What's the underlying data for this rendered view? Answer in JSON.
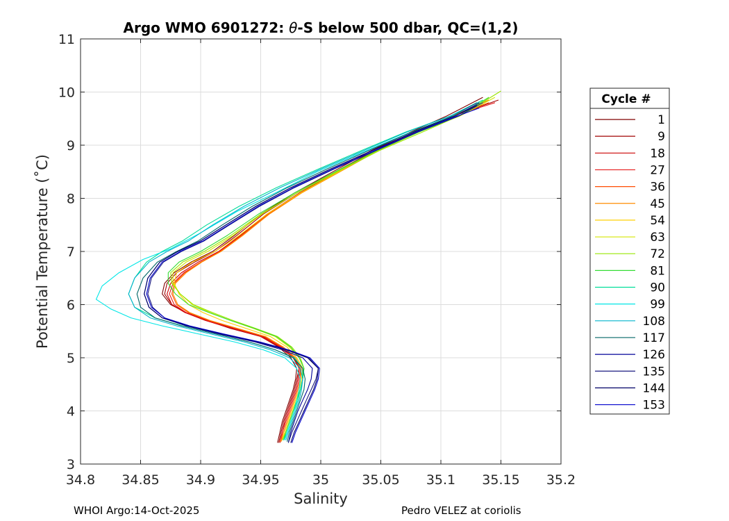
{
  "chart_data": {
    "type": "line",
    "title_prefix": "Argo WMO 6901272: ",
    "title_theta": "θ",
    "title_suffix": "-S below 500 dbar,  QC=(1,2)",
    "xlabel": "Salinity",
    "ylabel": "Potential Temperature (˚C)",
    "xlim": [
      34.8,
      35.2
    ],
    "ylim": [
      3,
      11
    ],
    "xticks": [
      34.8,
      34.85,
      34.9,
      34.95,
      35,
      35.05,
      35.1,
      35.15,
      35.2
    ],
    "xtick_labels": [
      "34.8",
      "34.85",
      "34.9",
      "34.95",
      "35",
      "35.05",
      "35.1",
      "35.15",
      "35.2"
    ],
    "yticks": [
      3,
      4,
      5,
      6,
      7,
      8,
      9,
      10,
      11
    ],
    "ytick_labels": [
      "3",
      "4",
      "5",
      "6",
      "7",
      "8",
      "9",
      "10",
      "11"
    ],
    "grid": true,
    "legend_title": "Cycle #",
    "legend_position": "outside-right",
    "series": [
      {
        "name": "1",
        "color": "#800000",
        "S": [
          34.964,
          34.966,
          34.968,
          34.971,
          34.974,
          34.977,
          34.979,
          34.98,
          34.975,
          34.965,
          34.95,
          34.925,
          34.905,
          34.888,
          34.875,
          34.868,
          34.87,
          34.878,
          34.892,
          34.91,
          34.928,
          34.95,
          34.978,
          35.01,
          35.042,
          35.075,
          35.105,
          35.135
        ],
        "T": [
          3.4,
          3.6,
          3.8,
          4.0,
          4.2,
          4.4,
          4.6,
          4.8,
          5.0,
          5.2,
          5.4,
          5.55,
          5.7,
          5.85,
          6.0,
          6.2,
          6.4,
          6.6,
          6.8,
          7.0,
          7.3,
          7.7,
          8.1,
          8.5,
          8.9,
          9.25,
          9.55,
          9.9
        ]
      },
      {
        "name": "9",
        "color": "#a00000",
        "S": [
          34.965,
          34.967,
          34.969,
          34.972,
          34.975,
          34.978,
          34.98,
          34.982,
          34.978,
          34.968,
          34.952,
          34.928,
          34.906,
          34.888,
          34.876,
          34.87,
          34.872,
          34.88,
          34.895,
          34.912,
          34.93,
          34.952,
          34.98,
          35.012,
          35.045,
          35.078,
          35.11,
          35.148
        ],
        "T": [
          3.4,
          3.6,
          3.8,
          4.0,
          4.2,
          4.4,
          4.6,
          4.8,
          5.0,
          5.2,
          5.4,
          5.55,
          5.7,
          5.85,
          6.0,
          6.2,
          6.4,
          6.6,
          6.8,
          7.0,
          7.3,
          7.7,
          8.1,
          8.5,
          8.9,
          9.25,
          9.55,
          9.85
        ]
      },
      {
        "name": "18",
        "color": "#cc0000",
        "S": [
          34.966,
          34.968,
          34.97,
          34.973,
          34.976,
          34.979,
          34.981,
          34.982,
          34.977,
          34.966,
          34.95,
          34.926,
          34.904,
          34.887,
          34.876,
          34.872,
          34.875,
          34.884,
          34.898,
          34.915,
          34.933,
          34.955,
          34.982,
          35.014,
          35.046,
          35.078,
          35.11,
          35.14
        ],
        "T": [
          3.4,
          3.6,
          3.8,
          4.0,
          4.2,
          4.4,
          4.6,
          4.8,
          5.0,
          5.2,
          5.4,
          5.55,
          5.7,
          5.85,
          6.0,
          6.2,
          6.4,
          6.6,
          6.8,
          7.0,
          7.3,
          7.7,
          8.1,
          8.5,
          8.9,
          9.25,
          9.55,
          9.85
        ]
      },
      {
        "name": "27",
        "color": "#e61919",
        "S": [
          34.966,
          34.968,
          34.971,
          34.974,
          34.977,
          34.98,
          34.982,
          34.983,
          34.978,
          34.967,
          34.951,
          34.927,
          34.905,
          34.888,
          34.878,
          34.874,
          34.877,
          34.886,
          34.9,
          34.916,
          34.934,
          34.956,
          34.983,
          35.015,
          35.047,
          35.079,
          35.11,
          35.145
        ],
        "T": [
          3.42,
          3.6,
          3.8,
          4.0,
          4.2,
          4.4,
          4.6,
          4.8,
          5.0,
          5.2,
          5.4,
          5.55,
          5.7,
          5.85,
          6.0,
          6.2,
          6.4,
          6.6,
          6.8,
          7.0,
          7.3,
          7.7,
          8.1,
          8.5,
          8.9,
          9.25,
          9.55,
          9.8
        ]
      },
      {
        "name": "36",
        "color": "#ff4a00",
        "S": [
          34.966,
          34.969,
          34.972,
          34.975,
          34.978,
          34.981,
          34.983,
          34.983,
          34.978,
          34.968,
          34.953,
          34.93,
          34.907,
          34.89,
          34.88,
          34.876,
          34.878,
          34.887,
          34.9,
          34.916,
          34.934,
          34.956,
          34.983,
          35.015,
          35.047,
          35.079,
          35.11,
          35.14
        ],
        "T": [
          3.42,
          3.6,
          3.8,
          4.0,
          4.2,
          4.4,
          4.6,
          4.8,
          5.0,
          5.2,
          5.4,
          5.55,
          5.7,
          5.85,
          6.0,
          6.2,
          6.4,
          6.6,
          6.8,
          7.0,
          7.3,
          7.7,
          8.1,
          8.5,
          8.9,
          9.25,
          9.55,
          9.8
        ]
      },
      {
        "name": "45",
        "color": "#ff8c00",
        "S": [
          34.967,
          34.969,
          34.972,
          34.975,
          34.978,
          34.981,
          34.983,
          34.984,
          34.979,
          34.969,
          34.954,
          34.931,
          34.908,
          34.891,
          34.881,
          34.877,
          34.879,
          34.888,
          34.901,
          34.917,
          34.935,
          34.957,
          34.984,
          35.016,
          35.048,
          35.08,
          35.11,
          35.14
        ],
        "T": [
          3.42,
          3.6,
          3.8,
          4.0,
          4.2,
          4.4,
          4.6,
          4.8,
          5.0,
          5.2,
          5.4,
          5.55,
          5.7,
          5.85,
          6.0,
          6.2,
          6.4,
          6.6,
          6.8,
          7.0,
          7.3,
          7.7,
          8.1,
          8.5,
          8.9,
          9.25,
          9.55,
          9.85
        ]
      },
      {
        "name": "54",
        "color": "#ffd000",
        "S": [
          34.968,
          34.97,
          34.973,
          34.976,
          34.979,
          34.982,
          34.984,
          34.985,
          34.98,
          34.972,
          34.958,
          34.938,
          34.918,
          34.902,
          34.89,
          34.882,
          34.878,
          34.88,
          34.893,
          34.912,
          34.932,
          34.955,
          34.983,
          35.015,
          35.048,
          35.082,
          35.115,
          35.14
        ],
        "T": [
          3.45,
          3.6,
          3.8,
          4.0,
          4.2,
          4.4,
          4.6,
          4.8,
          5.0,
          5.2,
          5.4,
          5.55,
          5.7,
          5.85,
          6.0,
          6.2,
          6.4,
          6.6,
          6.8,
          7.0,
          7.3,
          7.7,
          8.1,
          8.5,
          8.9,
          9.25,
          9.55,
          9.9
        ]
      },
      {
        "name": "63",
        "color": "#d4e600",
        "S": [
          34.968,
          34.971,
          34.974,
          34.977,
          34.98,
          34.983,
          34.985,
          34.986,
          34.982,
          34.974,
          34.962,
          34.944,
          34.925,
          34.908,
          34.893,
          34.883,
          34.877,
          34.877,
          34.888,
          34.906,
          34.927,
          34.951,
          34.98,
          35.013,
          35.047,
          35.082,
          35.116,
          35.145
        ],
        "T": [
          3.45,
          3.6,
          3.8,
          4.0,
          4.2,
          4.4,
          4.6,
          4.8,
          5.0,
          5.2,
          5.4,
          5.55,
          5.7,
          5.85,
          6.0,
          6.2,
          6.4,
          6.6,
          6.8,
          7.0,
          7.3,
          7.7,
          8.1,
          8.5,
          8.9,
          9.25,
          9.55,
          9.9
        ]
      },
      {
        "name": "72",
        "color": "#99e600",
        "S": [
          34.968,
          34.971,
          34.974,
          34.977,
          34.98,
          34.983,
          34.985,
          34.986,
          34.983,
          34.976,
          34.964,
          34.946,
          34.927,
          34.91,
          34.894,
          34.883,
          34.876,
          34.875,
          34.885,
          34.903,
          34.925,
          34.95,
          34.98,
          35.014,
          35.049,
          35.085,
          35.12,
          35.15
        ],
        "T": [
          3.45,
          3.6,
          3.8,
          4.0,
          4.2,
          4.4,
          4.6,
          4.8,
          5.0,
          5.2,
          5.4,
          5.55,
          5.7,
          5.85,
          6.0,
          6.2,
          6.4,
          6.6,
          6.8,
          7.0,
          7.3,
          7.7,
          8.1,
          8.5,
          8.9,
          9.25,
          9.6,
          10.02
        ]
      },
      {
        "name": "81",
        "color": "#33dd33",
        "S": [
          34.969,
          34.971,
          34.974,
          34.977,
          34.98,
          34.983,
          34.985,
          34.986,
          34.982,
          34.975,
          34.963,
          34.945,
          34.925,
          34.907,
          34.89,
          34.879,
          34.873,
          34.873,
          34.882,
          34.9,
          34.922,
          34.948,
          34.978,
          35.012,
          35.047,
          35.082,
          35.115,
          35.14
        ],
        "T": [
          3.45,
          3.6,
          3.8,
          4.0,
          4.2,
          4.4,
          4.6,
          4.8,
          5.0,
          5.2,
          5.4,
          5.55,
          5.7,
          5.85,
          6.0,
          6.2,
          6.4,
          6.6,
          6.8,
          7.0,
          7.3,
          7.7,
          8.1,
          8.5,
          8.9,
          9.25,
          9.55,
          9.9
        ]
      },
      {
        "name": "90",
        "color": "#00dd99",
        "S": [
          34.969,
          34.972,
          34.975,
          34.978,
          34.981,
          34.983,
          34.985,
          34.985,
          34.978,
          34.962,
          34.94,
          34.912,
          34.885,
          34.862,
          34.845,
          34.84,
          34.845,
          34.855,
          34.868,
          34.885,
          34.905,
          34.932,
          34.963,
          34.998,
          35.034,
          35.071,
          35.108,
          35.135
        ],
        "T": [
          3.45,
          3.6,
          3.8,
          4.0,
          4.2,
          4.4,
          4.6,
          4.8,
          5.0,
          5.15,
          5.3,
          5.45,
          5.6,
          5.75,
          5.95,
          6.2,
          6.5,
          6.8,
          7.0,
          7.2,
          7.5,
          7.85,
          8.2,
          8.55,
          8.9,
          9.25,
          9.55,
          9.85
        ]
      },
      {
        "name": "99",
        "color": "#00e6e6",
        "S": [
          34.97,
          34.972,
          34.975,
          34.978,
          34.98,
          34.982,
          34.983,
          34.98,
          34.97,
          34.952,
          34.928,
          34.898,
          34.868,
          34.842,
          34.825,
          34.813,
          34.818,
          34.832,
          34.852,
          34.875,
          34.9,
          34.93,
          34.962,
          34.997,
          35.033,
          35.07,
          35.106,
          35.13
        ],
        "T": [
          3.45,
          3.6,
          3.8,
          4.0,
          4.2,
          4.4,
          4.6,
          4.8,
          5.0,
          5.15,
          5.3,
          5.45,
          5.6,
          5.75,
          5.92,
          6.1,
          6.35,
          6.6,
          6.85,
          7.05,
          7.35,
          7.75,
          8.1,
          8.5,
          8.85,
          9.2,
          9.5,
          9.8
        ]
      },
      {
        "name": "108",
        "color": "#00b3cc",
        "S": [
          34.971,
          34.973,
          34.976,
          34.979,
          34.982,
          34.984,
          34.985,
          34.983,
          34.974,
          34.958,
          34.936,
          34.908,
          34.88,
          34.858,
          34.845,
          34.84,
          34.845,
          34.857,
          34.872,
          34.89,
          34.91,
          34.936,
          34.966,
          35.0,
          35.036,
          35.072,
          35.108,
          35.13
        ],
        "T": [
          3.45,
          3.6,
          3.8,
          4.0,
          4.2,
          4.4,
          4.6,
          4.8,
          5.0,
          5.15,
          5.3,
          5.45,
          5.6,
          5.75,
          5.95,
          6.2,
          6.5,
          6.8,
          7.0,
          7.2,
          7.5,
          7.85,
          8.2,
          8.55,
          8.9,
          9.25,
          9.55,
          9.8
        ]
      },
      {
        "name": "117",
        "color": "#006666",
        "S": [
          34.972,
          34.974,
          34.977,
          34.98,
          34.983,
          34.986,
          34.987,
          34.985,
          34.977,
          34.962,
          34.94,
          34.912,
          34.884,
          34.862,
          34.85,
          34.847,
          34.852,
          34.864,
          34.88,
          34.898,
          34.918,
          34.943,
          34.972,
          35.005,
          35.04,
          35.076,
          35.11,
          35.13
        ],
        "T": [
          3.42,
          3.6,
          3.8,
          4.0,
          4.2,
          4.4,
          4.6,
          4.8,
          5.0,
          5.15,
          5.3,
          5.45,
          5.6,
          5.75,
          5.95,
          6.2,
          6.5,
          6.8,
          7.0,
          7.2,
          7.5,
          7.85,
          8.2,
          8.55,
          8.9,
          9.25,
          9.55,
          9.8
        ]
      },
      {
        "name": "126",
        "color": "#000099",
        "S": [
          34.973,
          34.975,
          34.978,
          34.981,
          34.985,
          34.989,
          34.992,
          34.993,
          34.985,
          34.968,
          34.945,
          34.915,
          34.888,
          34.868,
          34.857,
          34.853,
          34.856,
          34.866,
          34.881,
          34.9,
          34.921,
          34.946,
          34.975,
          35.008,
          35.043,
          35.078,
          35.112,
          35.132
        ],
        "T": [
          3.4,
          3.6,
          3.8,
          4.0,
          4.2,
          4.4,
          4.6,
          4.8,
          5.0,
          5.15,
          5.3,
          5.45,
          5.6,
          5.75,
          5.95,
          6.2,
          6.5,
          6.8,
          7.0,
          7.2,
          7.5,
          7.85,
          8.2,
          8.55,
          8.9,
          9.25,
          9.55,
          9.8
        ]
      },
      {
        "name": "135",
        "color": "#1a1a80",
        "S": [
          34.973,
          34.976,
          34.98,
          34.984,
          34.988,
          34.992,
          34.996,
          34.998,
          34.99,
          34.972,
          34.948,
          34.918,
          34.89,
          34.87,
          34.86,
          34.856,
          34.859,
          34.869,
          34.884,
          34.903,
          34.924,
          34.949,
          34.978,
          35.011,
          35.046,
          35.081,
          35.115,
          35.135
        ],
        "T": [
          3.4,
          3.6,
          3.8,
          4.0,
          4.2,
          4.4,
          4.6,
          4.8,
          5.0,
          5.15,
          5.3,
          5.45,
          5.6,
          5.75,
          5.95,
          6.2,
          6.5,
          6.8,
          7.0,
          7.2,
          7.5,
          7.85,
          8.2,
          8.55,
          8.9,
          9.25,
          9.55,
          9.8
        ]
      },
      {
        "name": "144",
        "color": "#000066",
        "S": [
          34.975,
          34.978,
          34.982,
          34.986,
          34.99,
          34.994,
          34.997,
          34.998,
          34.989,
          34.971,
          34.947,
          34.917,
          34.889,
          34.868,
          34.857,
          34.853,
          34.856,
          34.866,
          34.881,
          34.9,
          34.921,
          34.946,
          34.975,
          35.008,
          35.043,
          35.078,
          35.112,
          35.13
        ],
        "T": [
          3.4,
          3.6,
          3.8,
          4.0,
          4.2,
          4.4,
          4.6,
          4.8,
          5.0,
          5.15,
          5.3,
          5.45,
          5.6,
          5.75,
          5.95,
          6.2,
          6.5,
          6.8,
          7.0,
          7.2,
          7.5,
          7.85,
          8.2,
          8.55,
          8.9,
          9.25,
          9.55,
          9.75
        ]
      },
      {
        "name": "153",
        "color": "#0000cc",
        "S": [
          34.976,
          34.979,
          34.983,
          34.987,
          34.991,
          34.995,
          34.998,
          34.999,
          34.991,
          34.973,
          34.949,
          34.919,
          34.891,
          34.87,
          34.859,
          34.855,
          34.858,
          34.868,
          34.883,
          34.902,
          34.923,
          34.948,
          34.977,
          35.01,
          35.045,
          35.08,
          35.114,
          35.132
        ],
        "T": [
          3.4,
          3.6,
          3.8,
          4.0,
          4.2,
          4.4,
          4.6,
          4.8,
          5.0,
          5.15,
          5.3,
          5.45,
          5.6,
          5.75,
          5.95,
          6.2,
          6.5,
          6.8,
          7.0,
          7.2,
          7.5,
          7.85,
          8.2,
          8.55,
          8.9,
          9.25,
          9.55,
          9.7
        ]
      }
    ]
  },
  "footer": {
    "left": "WHOI Argo:14-Oct-2025",
    "right": "Pedro VELEZ at coriolis"
  }
}
